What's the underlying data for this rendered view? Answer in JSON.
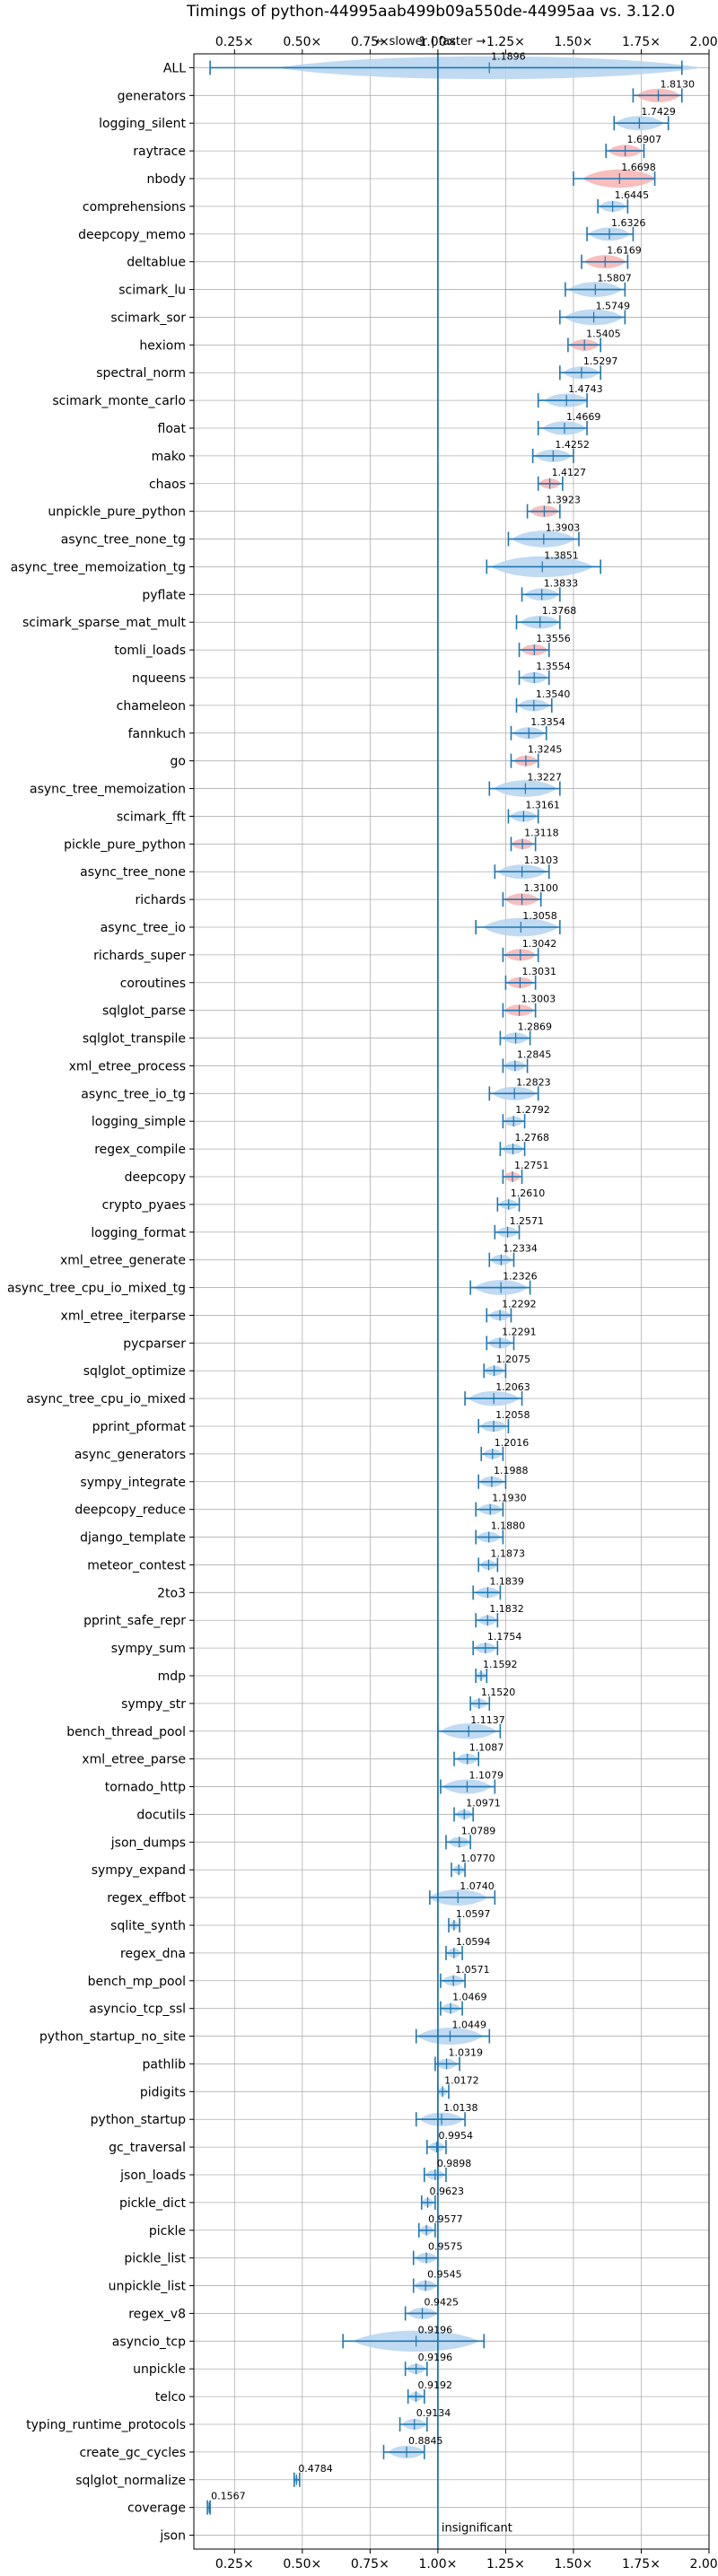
{
  "chart_data": {
    "type": "violin",
    "title": "Timings of python-44995aab499b09a550de-44995aa vs. 3.12.0",
    "direction_note": "← slower | faster →",
    "insignificant_label": "insignificant",
    "xlim": [
      0.1,
      2.0
    ],
    "xticks": [
      0.25,
      0.5,
      0.75,
      1.0,
      1.25,
      1.5,
      1.75,
      2.0
    ],
    "xtick_labels": [
      "0.25×",
      "0.50×",
      "0.75×",
      "1.00×",
      "1.25×",
      "1.50×",
      "1.75×",
      "2.00×"
    ],
    "reference_line": 1.0,
    "grid": true,
    "colors": {
      "significant": "#b5d3ee",
      "highlight": "#f7b3b3",
      "errorbar": "#1f77b4",
      "grid": "#b0b0b0",
      "axis": "#000000"
    },
    "benchmarks": [
      {
        "name": "ALL",
        "value": 1.1896,
        "err": [
          0.16,
          1.9
        ],
        "hl": false,
        "wide": true
      },
      {
        "name": "generators",
        "value": 1.813,
        "err": [
          1.72,
          1.9
        ],
        "hl": true
      },
      {
        "name": "logging_silent",
        "value": 1.7429,
        "err": [
          1.65,
          1.85
        ],
        "hl": false
      },
      {
        "name": "raytrace",
        "value": 1.6907,
        "err": [
          1.62,
          1.76
        ],
        "hl": true
      },
      {
        "name": "nbody",
        "value": 1.6698,
        "err": [
          1.5,
          1.8
        ],
        "hl": true
      },
      {
        "name": "comprehensions",
        "value": 1.6445,
        "err": [
          1.59,
          1.7
        ],
        "hl": false
      },
      {
        "name": "deepcopy_memo",
        "value": 1.6326,
        "err": [
          1.55,
          1.72
        ],
        "hl": false
      },
      {
        "name": "deltablue",
        "value": 1.6169,
        "err": [
          1.53,
          1.7
        ],
        "hl": true
      },
      {
        "name": "scimark_lu",
        "value": 1.5807,
        "err": [
          1.47,
          1.69
        ],
        "hl": false
      },
      {
        "name": "scimark_sor",
        "value": 1.5749,
        "err": [
          1.45,
          1.69
        ],
        "hl": false
      },
      {
        "name": "hexiom",
        "value": 1.5405,
        "err": [
          1.48,
          1.6
        ],
        "hl": true
      },
      {
        "name": "spectral_norm",
        "value": 1.5297,
        "err": [
          1.45,
          1.6
        ],
        "hl": false
      },
      {
        "name": "scimark_monte_carlo",
        "value": 1.4743,
        "err": [
          1.37,
          1.55
        ],
        "hl": false
      },
      {
        "name": "float",
        "value": 1.4669,
        "err": [
          1.37,
          1.55
        ],
        "hl": false
      },
      {
        "name": "mako",
        "value": 1.4252,
        "err": [
          1.35,
          1.5
        ],
        "hl": false
      },
      {
        "name": "chaos",
        "value": 1.4127,
        "err": [
          1.37,
          1.46
        ],
        "hl": true
      },
      {
        "name": "unpickle_pure_python",
        "value": 1.3923,
        "err": [
          1.33,
          1.45
        ],
        "hl": true
      },
      {
        "name": "async_tree_none_tg",
        "value": 1.3903,
        "err": [
          1.26,
          1.52
        ],
        "hl": false
      },
      {
        "name": "async_tree_memoization_tg",
        "value": 1.3851,
        "err": [
          1.18,
          1.6
        ],
        "hl": false
      },
      {
        "name": "pyflate",
        "value": 1.3833,
        "err": [
          1.31,
          1.45
        ],
        "hl": false
      },
      {
        "name": "scimark_sparse_mat_mult",
        "value": 1.3768,
        "err": [
          1.29,
          1.45
        ],
        "hl": false
      },
      {
        "name": "tomli_loads",
        "value": 1.3556,
        "err": [
          1.3,
          1.41
        ],
        "hl": true
      },
      {
        "name": "nqueens",
        "value": 1.3554,
        "err": [
          1.3,
          1.41
        ],
        "hl": false
      },
      {
        "name": "chameleon",
        "value": 1.354,
        "err": [
          1.29,
          1.42
        ],
        "hl": false
      },
      {
        "name": "fannkuch",
        "value": 1.3354,
        "err": [
          1.27,
          1.4
        ],
        "hl": false
      },
      {
        "name": "go",
        "value": 1.3245,
        "err": [
          1.27,
          1.37
        ],
        "hl": true
      },
      {
        "name": "async_tree_memoization",
        "value": 1.3227,
        "err": [
          1.19,
          1.45
        ],
        "hl": false
      },
      {
        "name": "scimark_fft",
        "value": 1.3161,
        "err": [
          1.26,
          1.37
        ],
        "hl": false
      },
      {
        "name": "pickle_pure_python",
        "value": 1.3118,
        "err": [
          1.27,
          1.36
        ],
        "hl": true
      },
      {
        "name": "async_tree_none",
        "value": 1.3103,
        "err": [
          1.21,
          1.41
        ],
        "hl": false
      },
      {
        "name": "richards",
        "value": 1.31,
        "err": [
          1.24,
          1.38
        ],
        "hl": true
      },
      {
        "name": "async_tree_io",
        "value": 1.3058,
        "err": [
          1.14,
          1.45
        ],
        "hl": false
      },
      {
        "name": "richards_super",
        "value": 1.3042,
        "err": [
          1.24,
          1.37
        ],
        "hl": true
      },
      {
        "name": "coroutines",
        "value": 1.3031,
        "err": [
          1.25,
          1.36
        ],
        "hl": true
      },
      {
        "name": "sqlglot_parse",
        "value": 1.3003,
        "err": [
          1.24,
          1.36
        ],
        "hl": true
      },
      {
        "name": "sqlglot_transpile",
        "value": 1.2869,
        "err": [
          1.23,
          1.34
        ],
        "hl": false
      },
      {
        "name": "xml_etree_process",
        "value": 1.2845,
        "err": [
          1.24,
          1.33
        ],
        "hl": false
      },
      {
        "name": "async_tree_io_tg",
        "value": 1.2823,
        "err": [
          1.19,
          1.37
        ],
        "hl": false
      },
      {
        "name": "logging_simple",
        "value": 1.2792,
        "err": [
          1.24,
          1.32
        ],
        "hl": false
      },
      {
        "name": "regex_compile",
        "value": 1.2768,
        "err": [
          1.23,
          1.32
        ],
        "hl": false
      },
      {
        "name": "deepcopy",
        "value": 1.2751,
        "err": [
          1.24,
          1.31
        ],
        "hl": true
      },
      {
        "name": "crypto_pyaes",
        "value": 1.261,
        "err": [
          1.22,
          1.3
        ],
        "hl": false
      },
      {
        "name": "logging_format",
        "value": 1.2571,
        "err": [
          1.21,
          1.3
        ],
        "hl": false
      },
      {
        "name": "xml_etree_generate",
        "value": 1.2334,
        "err": [
          1.19,
          1.28
        ],
        "hl": false
      },
      {
        "name": "async_tree_cpu_io_mixed_tg",
        "value": 1.2326,
        "err": [
          1.12,
          1.34
        ],
        "hl": false
      },
      {
        "name": "xml_etree_iterparse",
        "value": 1.2292,
        "err": [
          1.18,
          1.27
        ],
        "hl": false
      },
      {
        "name": "pycparser",
        "value": 1.2291,
        "err": [
          1.18,
          1.28
        ],
        "hl": false
      },
      {
        "name": "sqlglot_optimize",
        "value": 1.2075,
        "err": [
          1.17,
          1.25
        ],
        "hl": false
      },
      {
        "name": "async_tree_cpu_io_mixed",
        "value": 1.2063,
        "err": [
          1.1,
          1.31
        ],
        "hl": false
      },
      {
        "name": "pprint_pformat",
        "value": 1.2058,
        "err": [
          1.15,
          1.26
        ],
        "hl": false
      },
      {
        "name": "async_generators",
        "value": 1.2016,
        "err": [
          1.16,
          1.24
        ],
        "hl": false
      },
      {
        "name": "sympy_integrate",
        "value": 1.1988,
        "err": [
          1.15,
          1.25
        ],
        "hl": false
      },
      {
        "name": "deepcopy_reduce",
        "value": 1.193,
        "err": [
          1.14,
          1.24
        ],
        "hl": false
      },
      {
        "name": "django_template",
        "value": 1.188,
        "err": [
          1.14,
          1.24
        ],
        "hl": false
      },
      {
        "name": "meteor_contest",
        "value": 1.1873,
        "err": [
          1.15,
          1.22
        ],
        "hl": false
      },
      {
        "name": "2to3",
        "value": 1.1839,
        "err": [
          1.13,
          1.23
        ],
        "hl": false
      },
      {
        "name": "pprint_safe_repr",
        "value": 1.1832,
        "err": [
          1.14,
          1.22
        ],
        "hl": false
      },
      {
        "name": "sympy_sum",
        "value": 1.1754,
        "err": [
          1.13,
          1.22
        ],
        "hl": false
      },
      {
        "name": "mdp",
        "value": 1.1592,
        "err": [
          1.14,
          1.18
        ],
        "hl": false
      },
      {
        "name": "sympy_str",
        "value": 1.152,
        "err": [
          1.12,
          1.19
        ],
        "hl": false
      },
      {
        "name": "bench_thread_pool",
        "value": 1.1137,
        "err": [
          1.0,
          1.23
        ],
        "hl": false
      },
      {
        "name": "xml_etree_parse",
        "value": 1.1087,
        "err": [
          1.06,
          1.15
        ],
        "hl": false
      },
      {
        "name": "tornado_http",
        "value": 1.1079,
        "err": [
          1.01,
          1.21
        ],
        "hl": false
      },
      {
        "name": "docutils",
        "value": 1.0971,
        "err": [
          1.06,
          1.13
        ],
        "hl": false
      },
      {
        "name": "json_dumps",
        "value": 1.0789,
        "err": [
          1.03,
          1.12
        ],
        "hl": false
      },
      {
        "name": "sympy_expand",
        "value": 1.077,
        "err": [
          1.05,
          1.1
        ],
        "hl": false
      },
      {
        "name": "regex_effbot",
        "value": 1.074,
        "err": [
          0.97,
          1.21
        ],
        "hl": false
      },
      {
        "name": "sqlite_synth",
        "value": 1.0597,
        "err": [
          1.04,
          1.08
        ],
        "hl": false
      },
      {
        "name": "regex_dna",
        "value": 1.0594,
        "err": [
          1.03,
          1.09
        ],
        "hl": false
      },
      {
        "name": "bench_mp_pool",
        "value": 1.0571,
        "err": [
          1.01,
          1.1
        ],
        "hl": false
      },
      {
        "name": "asyncio_tcp_ssl",
        "value": 1.0469,
        "err": [
          1.01,
          1.09
        ],
        "hl": false
      },
      {
        "name": "python_startup_no_site",
        "value": 1.0449,
        "err": [
          0.92,
          1.19
        ],
        "hl": false
      },
      {
        "name": "pathlib",
        "value": 1.0319,
        "err": [
          0.99,
          1.08
        ],
        "hl": false
      },
      {
        "name": "pidigits",
        "value": 1.0172,
        "err": [
          1.0,
          1.04
        ],
        "hl": false
      },
      {
        "name": "python_startup",
        "value": 1.0138,
        "err": [
          0.92,
          1.1
        ],
        "hl": false
      },
      {
        "name": "gc_traversal",
        "value": 0.9954,
        "err": [
          0.96,
          1.03
        ],
        "hl": false
      },
      {
        "name": "json_loads",
        "value": 0.9898,
        "err": [
          0.95,
          1.03
        ],
        "hl": false
      },
      {
        "name": "pickle_dict",
        "value": 0.9623,
        "err": [
          0.94,
          0.99
        ],
        "hl": false
      },
      {
        "name": "pickle",
        "value": 0.9577,
        "err": [
          0.93,
          0.99
        ],
        "hl": false
      },
      {
        "name": "pickle_list",
        "value": 0.9575,
        "err": [
          0.91,
          1.0
        ],
        "hl": false
      },
      {
        "name": "unpickle_list",
        "value": 0.9545,
        "err": [
          0.91,
          1.0
        ],
        "hl": false
      },
      {
        "name": "regex_v8",
        "value": 0.9425,
        "err": [
          0.88,
          1.0
        ],
        "hl": false
      },
      {
        "name": "asyncio_tcp",
        "value": 0.9196,
        "err": [
          0.65,
          1.17
        ],
        "hl": false
      },
      {
        "name": "unpickle",
        "value": 0.9196,
        "err": [
          0.88,
          0.96
        ],
        "hl": false
      },
      {
        "name": "telco",
        "value": 0.9192,
        "err": [
          0.89,
          0.95
        ],
        "hl": false
      },
      {
        "name": "typing_runtime_protocols",
        "value": 0.9134,
        "err": [
          0.86,
          0.96
        ],
        "hl": false
      },
      {
        "name": "create_gc_cycles",
        "value": 0.8845,
        "err": [
          0.8,
          0.95
        ],
        "hl": false
      },
      {
        "name": "sqlglot_normalize",
        "value": 0.4784,
        "err": [
          0.47,
          0.49
        ],
        "hl": false
      },
      {
        "name": "coverage",
        "value": 0.1567,
        "err": [
          0.15,
          0.16
        ],
        "hl": false
      },
      {
        "name": "json",
        "value": null,
        "err": null,
        "hl": false,
        "insignificant": true
      }
    ]
  }
}
